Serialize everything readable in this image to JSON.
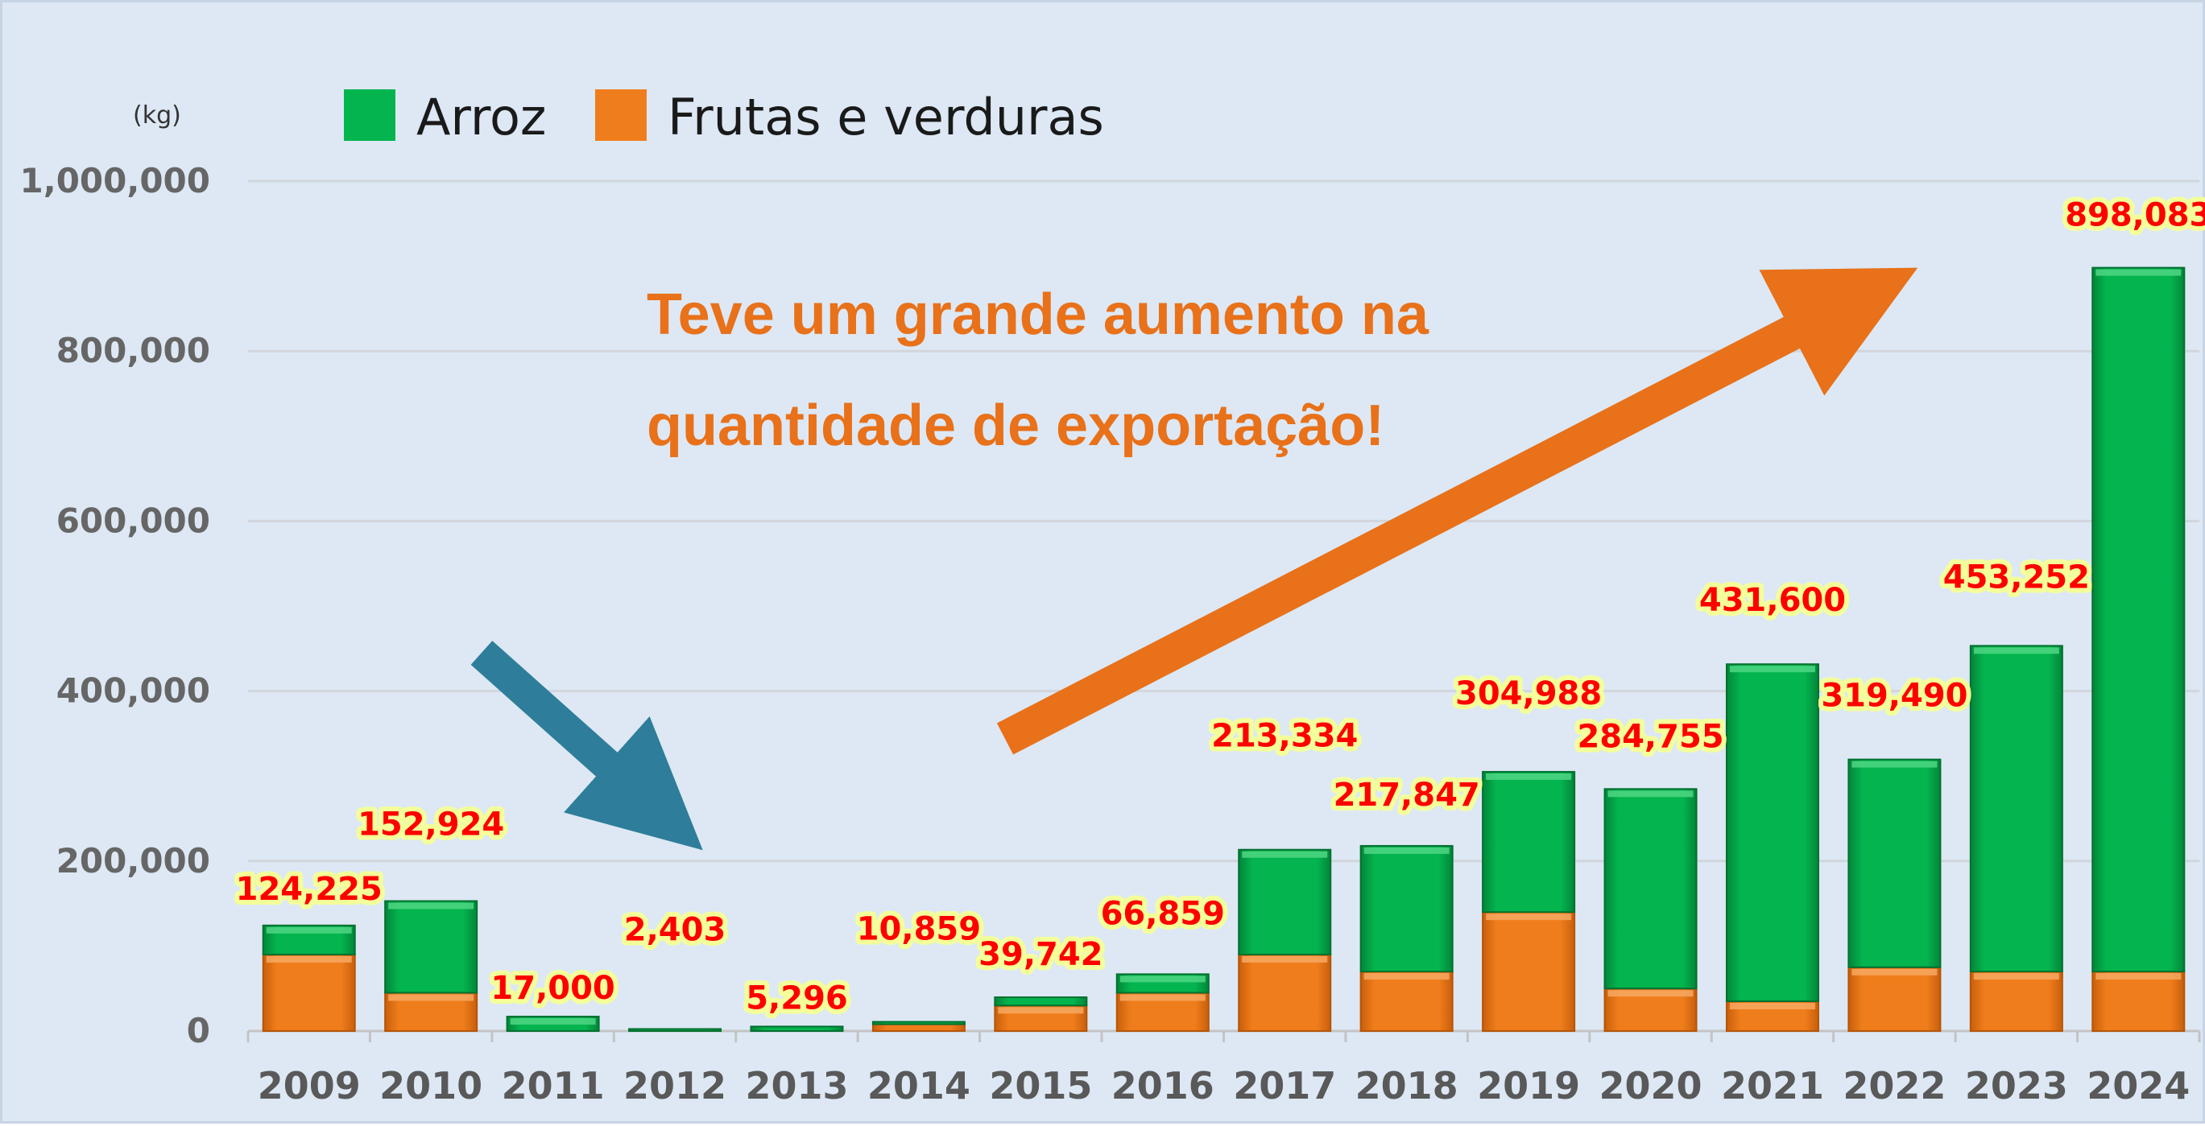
{
  "chart_data": {
    "type": "bar",
    "stacked": true,
    "unit": "(kg)",
    "categories": [
      "2009",
      "2010",
      "2011",
      "2012",
      "2013",
      "2014",
      "2015",
      "2016",
      "2017",
      "2018",
      "2019",
      "2020",
      "2021",
      "2022",
      "2023",
      "2024"
    ],
    "series": [
      {
        "name": "Frutas e verduras",
        "color": "#f07d1b",
        "values": [
          90000,
          45000,
          0,
          0,
          0,
          8000,
          30000,
          45000,
          90000,
          70000,
          140000,
          50000,
          35000,
          75000,
          70000,
          70000
        ]
      },
      {
        "name": "Arroz",
        "color": "#04b44e",
        "values": [
          34225,
          107924,
          17000,
          2403,
          5296,
          2859,
          9742,
          21859,
          123334,
          147847,
          164988,
          234755,
          396600,
          244490,
          383252,
          828083
        ]
      }
    ],
    "totals": [
      124225,
      152924,
      17000,
      2403,
      5296,
      10859,
      39742,
      66859,
      213334,
      217847,
      304988,
      284755,
      431600,
      319490,
      453252,
      898083
    ],
    "total_labels": [
      "124,225",
      "152,924",
      "17,000",
      "2,403",
      "5,296",
      "10,859",
      "39,742",
      "66,859",
      "213,334",
      "217,847",
      "304,988",
      "284,755",
      "431,600",
      "319,490",
      "453,252",
      "898,083"
    ],
    "yticks": [
      0,
      200000,
      400000,
      600000,
      800000,
      1000000
    ],
    "ytick_labels": [
      "0",
      "200,000",
      "400,000",
      "600,000",
      "800,000",
      "1,000,000"
    ],
    "ylim": [
      0,
      1000000
    ],
    "grid": true,
    "legend_position": "top-left",
    "annotation": [
      "Teve um grande aumento na",
      "quantidade de exportação!"
    ],
    "arrows": [
      {
        "name": "decline-arrow",
        "color": "#2e7d9a",
        "direction": "down-right"
      },
      {
        "name": "increase-arrow",
        "color": "#e8711a",
        "direction": "up-right"
      }
    ]
  }
}
